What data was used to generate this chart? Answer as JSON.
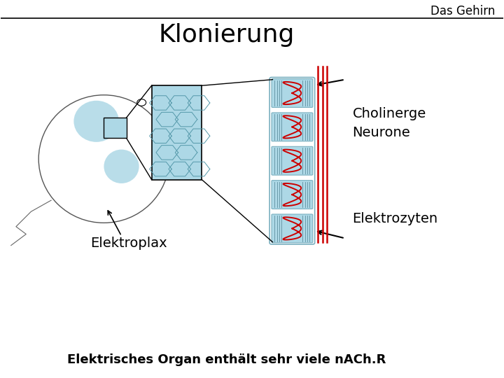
{
  "title": "Klonierung",
  "header": "Das Gehirn",
  "label_cholinerge": "Cholinerge",
  "label_neurone": "Neurone",
  "label_elektrozyten": "Elektrozyten",
  "label_elektroplax": "Elektroplax",
  "footer": "Elektrisches Organ enthält sehr viele nACh.R",
  "bg_color": "#f0f0f0",
  "light_blue": "#add8e6",
  "red": "#cc0000",
  "dark_gray": "#333333",
  "title_fontsize": 26,
  "header_fontsize": 12,
  "label_fontsize": 14,
  "footer_fontsize": 13
}
